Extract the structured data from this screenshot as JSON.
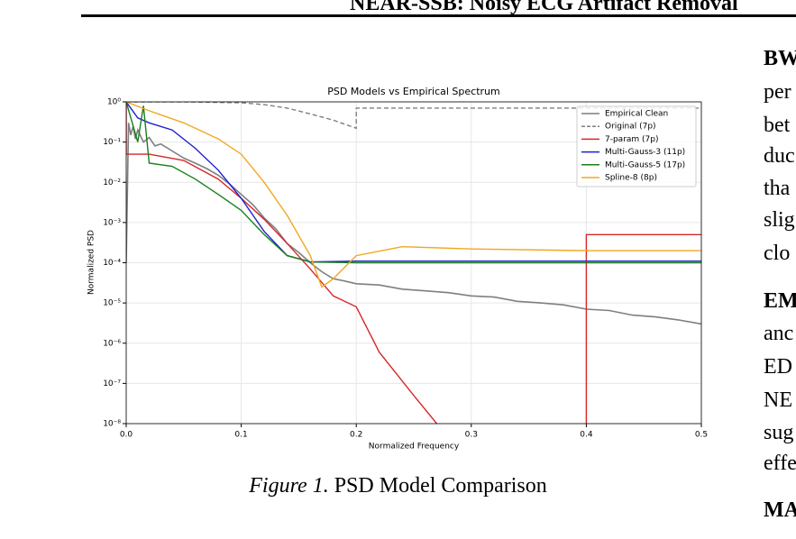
{
  "header": {
    "title": "NEAR-SSB: Noisy ECG Artifact Removal"
  },
  "chart_data": {
    "type": "line",
    "title": "PSD Models vs Empirical Spectrum",
    "x_label": "Normalized Frequency",
    "y_label": "Normalized PSD",
    "log_y": true,
    "grid": true,
    "legend": "upper right",
    "xlim": [
      0,
      0.5
    ],
    "xticks": [
      {
        "value": 0,
        "label": "0.0"
      },
      0.1,
      0.2,
      0.3,
      0.4,
      0.5
    ],
    "ylim": [
      1e-08,
      1
    ],
    "yticks": [
      {
        "value": 1e-08,
        "label": "10⁻⁸"
      },
      {
        "value": 1e-07,
        "label": "10⁻⁷"
      },
      {
        "value": 1e-06,
        "label": "10⁻⁶"
      },
      {
        "value": 1e-05,
        "label": "10⁻⁵"
      },
      {
        "value": 0.0001,
        "label": "10⁻⁴"
      },
      {
        "value": 0.001,
        "label": "10⁻³"
      },
      {
        "value": 0.01,
        "label": "10⁻²"
      },
      {
        "value": 0.1,
        "label": "10⁻¹"
      },
      {
        "value": 1,
        "label": "10⁰"
      }
    ],
    "series": [
      {
        "name": "Empirical Clean",
        "color": "#7f7f7f",
        "dash": false,
        "x": [
          0,
          0.002,
          0.004,
          0.006,
          0.008,
          0.01,
          0.015,
          0.02,
          0.025,
          0.03,
          0.04,
          0.05,
          0.06,
          0.07,
          0.08,
          0.09,
          0.1,
          0.11,
          0.12,
          0.13,
          0.14,
          0.15,
          0.16,
          0.17,
          0.18,
          0.19,
          0.2,
          0.22,
          0.24,
          0.26,
          0.28,
          0.3,
          0.32,
          0.34,
          0.36,
          0.38,
          0.4,
          0.42,
          0.44,
          0.46,
          0.48,
          0.5
        ],
        "values": [
          0.0001,
          0.3,
          0.15,
          0.25,
          0.12,
          0.2,
          0.1,
          0.13,
          0.08,
          0.09,
          0.06,
          0.04,
          0.03,
          0.022,
          0.015,
          0.009,
          0.005,
          0.0028,
          0.0013,
          0.0007,
          0.0003,
          0.00018,
          0.0001,
          6e-05,
          4e-05,
          3.5e-05,
          3e-05,
          2.8e-05,
          2.2e-05,
          2e-05,
          1.8e-05,
          1.5e-05,
          1.4e-05,
          1.1e-05,
          1e-05,
          9e-06,
          7e-06,
          6.5e-06,
          5e-06,
          4.5e-06,
          3.8e-06,
          3e-06
        ]
      },
      {
        "name": "Original (7p)",
        "color": "#7f7f7f",
        "dash": true,
        "x": [
          0,
          0.05,
          0.1,
          0.12,
          0.14,
          0.16,
          0.18,
          0.2,
          0.2,
          0.3,
          0.4,
          0.5
        ],
        "values": [
          1,
          1,
          0.95,
          0.85,
          0.7,
          0.5,
          0.35,
          0.22,
          0.7,
          0.7,
          0.7,
          0.7
        ]
      },
      {
        "name": "7-param (7p)",
        "color": "#d62728",
        "dash": false,
        "x": [
          0,
          0,
          0.02,
          0.05,
          0.08,
          0.1,
          0.12,
          0.14,
          0.16,
          0.18,
          0.2,
          0.22,
          0.25,
          0.27,
          null,
          0.4,
          0.4,
          0.5
        ],
        "values": [
          1,
          0.05,
          0.05,
          0.035,
          0.012,
          0.004,
          0.0012,
          0.0003,
          7e-05,
          1.5e-05,
          8e-06,
          6e-07,
          5e-08,
          1e-08,
          null,
          1e-08,
          0.0005,
          0.0005
        ]
      },
      {
        "name": "Multi-Gauss-3 (11p)",
        "color": "#1f1fcf",
        "dash": false,
        "x": [
          0,
          0.01,
          0.02,
          0.04,
          0.06,
          0.08,
          0.1,
          0.12,
          0.14,
          0.16,
          0.2,
          0.3,
          0.4,
          0.5
        ],
        "values": [
          1,
          0.4,
          0.3,
          0.2,
          0.07,
          0.02,
          0.004,
          0.0006,
          0.00015,
          0.000105,
          0.00011,
          0.00011,
          0.00011,
          0.00011
        ]
      },
      {
        "name": "Multi-Gauss-5 (17p)",
        "color": "#1a7f1a",
        "dash": false,
        "x": [
          0,
          0.01,
          0.015,
          0.02,
          0.04,
          0.06,
          0.08,
          0.1,
          0.12,
          0.14,
          0.16,
          0.2,
          0.3,
          0.4,
          0.5
        ],
        "values": [
          1,
          0.1,
          0.8,
          0.03,
          0.025,
          0.012,
          0.005,
          0.002,
          0.0005,
          0.00015,
          0.000105,
          0.0001,
          0.0001,
          0.0001,
          0.0001
        ]
      },
      {
        "name": "Spline-8 (8p)",
        "color": "#f0a820",
        "dash": false,
        "x": [
          0,
          0.02,
          0.05,
          0.08,
          0.1,
          0.12,
          0.14,
          0.16,
          0.17,
          0.18,
          0.2,
          0.24,
          0.3,
          0.4,
          0.5
        ],
        "values": [
          1,
          0.6,
          0.3,
          0.12,
          0.05,
          0.01,
          0.0015,
          0.00015,
          2.5e-05,
          4e-05,
          0.00015,
          0.00025,
          0.00022,
          0.0002,
          0.0002
        ]
      }
    ]
  },
  "caption": {
    "label": "Figure 1.",
    "text": "PSD Model Comparison"
  },
  "right_column": [
    "BW",
    "per",
    "bet",
    "duc",
    "tha",
    "slig",
    "clo",
    "EM",
    "anc",
    "ED",
    "NE",
    "sug",
    "effe",
    "MA"
  ]
}
